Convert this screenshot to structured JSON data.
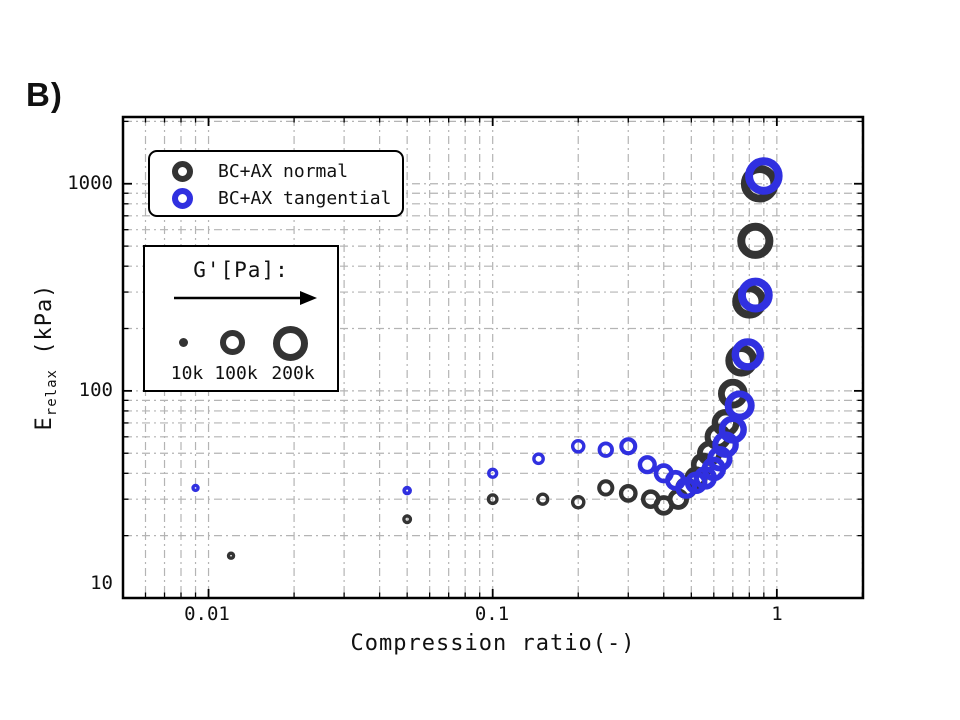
{
  "panel_label": "B)",
  "colors": {
    "normal": "#333333",
    "tangential": "#3030e0",
    "grid": "#b4b4b4",
    "frame": "#000000"
  },
  "chart_data": {
    "type": "scatter",
    "title": "",
    "x_axis": {
      "label": "Compression ratio(-)",
      "scale": "log",
      "min": 0.005,
      "max": 2.01,
      "ticks": [
        0.01,
        0.1,
        1
      ],
      "tick_labels": [
        "0.01",
        "0.1",
        "1"
      ]
    },
    "y_axis": {
      "label_main": "E",
      "label_sub": "relax",
      "label_unit": " (kPa)",
      "scale": "log",
      "min": 10,
      "max": 2100,
      "ticks": [
        10,
        100,
        1000
      ],
      "tick_labels": [
        "10",
        "100",
        "1000"
      ]
    },
    "grid": "dash-dot, major and minor, both axes",
    "legend_position": "upper-left",
    "size_legend": {
      "title": "G'[Pa]:",
      "items": [
        {
          "label": "10k",
          "gprime": 10000
        },
        {
          "label": "100k",
          "gprime": 100000
        },
        {
          "label": "200k",
          "gprime": 200000
        }
      ]
    },
    "series": [
      {
        "name": "BC+AX normal",
        "color_key": "normal",
        "marker": "open-circle, size encodes G' [Pa]",
        "points_format": [
          "compression_ratio",
          "E_relax_kPa",
          "G_prime_Pa"
        ],
        "points": [
          [
            0.012,
            16,
            10000
          ],
          [
            0.05,
            24,
            14000
          ],
          [
            0.1,
            30,
            20000
          ],
          [
            0.15,
            30,
            25000
          ],
          [
            0.2,
            29,
            30000
          ],
          [
            0.25,
            34,
            42000
          ],
          [
            0.3,
            32,
            50000
          ],
          [
            0.36,
            30,
            55000
          ],
          [
            0.4,
            28,
            60000
          ],
          [
            0.45,
            30,
            65000
          ],
          [
            0.48,
            34,
            70000
          ],
          [
            0.52,
            38,
            76000
          ],
          [
            0.55,
            44,
            83000
          ],
          [
            0.58,
            50,
            90000
          ],
          [
            0.62,
            60,
            100000
          ],
          [
            0.66,
            70,
            110000
          ],
          [
            0.7,
            97,
            125000
          ],
          [
            0.75,
            140,
            145000
          ],
          [
            0.8,
            270,
            165000
          ],
          [
            0.84,
            530,
            185000
          ],
          [
            0.87,
            1000,
            200000
          ]
        ]
      },
      {
        "name": "BC+AX tangential",
        "color_key": "tangential",
        "marker": "open-circle, size encodes G' [Pa]",
        "points_format": [
          "compression_ratio",
          "E_relax_kPa",
          "G_prime_Pa"
        ],
        "points": [
          [
            0.009,
            34,
            10000
          ],
          [
            0.05,
            33,
            13000
          ],
          [
            0.1,
            40,
            18000
          ],
          [
            0.145,
            47,
            23000
          ],
          [
            0.2,
            54,
            30000
          ],
          [
            0.25,
            52,
            38000
          ],
          [
            0.3,
            54,
            46000
          ],
          [
            0.35,
            44,
            52000
          ],
          [
            0.4,
            40,
            57000
          ],
          [
            0.44,
            37,
            62000
          ],
          [
            0.48,
            34,
            67000
          ],
          [
            0.52,
            36,
            72000
          ],
          [
            0.56,
            38,
            78000
          ],
          [
            0.6,
            42,
            85000
          ],
          [
            0.63,
            47,
            92000
          ],
          [
            0.66,
            55,
            100000
          ],
          [
            0.7,
            65,
            112000
          ],
          [
            0.74,
            85,
            128000
          ],
          [
            0.79,
            150,
            148000
          ],
          [
            0.84,
            290,
            172000
          ],
          [
            0.9,
            1090,
            200000
          ]
        ]
      }
    ]
  }
}
